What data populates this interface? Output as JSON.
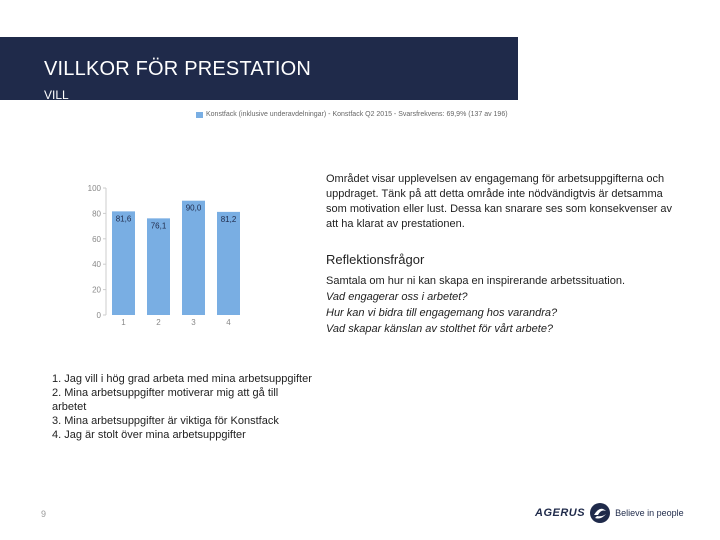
{
  "header": {
    "title": "VILLKOR FÖR PRESTATION",
    "subtitle": "VILL"
  },
  "chart_data": {
    "type": "bar",
    "legend": "Konstfack (inklusive underavdelningar) - Konstfack Q2 2015 - Svarsfrekvens: 69,9% (137 av 196)",
    "categories": [
      "1",
      "2",
      "3",
      "4"
    ],
    "values": [
      81.6,
      76.1,
      90.0,
      81.2
    ],
    "value_labels": [
      "81,6",
      "76,1",
      "90,0",
      "81,2"
    ],
    "y_ticks": [
      0,
      20,
      40,
      60,
      80,
      100
    ],
    "ylim": [
      0,
      100
    ],
    "color": "#79aee3",
    "grid": false
  },
  "description": "Området visar upplevelsen av engagemang för arbetsuppgifterna och uppdraget. Tänk på att detta område inte nödvändigtvis är detsamma som motivation eller lust. Dessa kan snarare ses som konsekvenser av att ha klarat av prestationen.",
  "reflection": {
    "heading": "Reflektionsfrågor",
    "intro": "Samtala om hur ni kan skapa en inspirerande arbetssituation.",
    "questions": [
      "Vad engagerar oss i arbetet?",
      "Hur kan vi bidra till engagemang hos varandra?",
      "Vad skapar känslan av stolthet för vårt arbete?"
    ]
  },
  "items": [
    "1. Jag vill i hög grad arbeta med mina arbetsuppgifter",
    "2. Mina arbetsuppgifter motiverar mig att gå till arbetet",
    "3. Mina arbetsuppgifter är viktiga för Konstfack",
    "4. Jag är stolt över mina arbetsuppgifter"
  ],
  "footer": {
    "page_number": "9",
    "logo_text": "AGERUS",
    "logo_tagline": "Believe in people"
  }
}
